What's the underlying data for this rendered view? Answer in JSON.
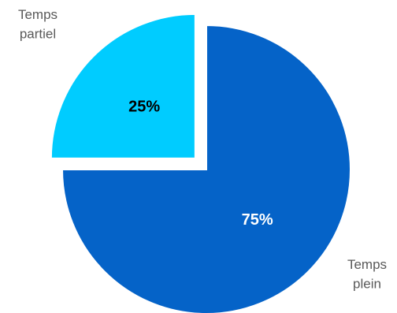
{
  "chart_data": {
    "type": "pie",
    "title": "",
    "slices": [
      {
        "label_lines": [
          "Temps",
          "plein"
        ],
        "value": 75,
        "value_label": "75%",
        "color": "#0563C8",
        "label_color": "#FFFFFF",
        "exploded": false
      },
      {
        "label_lines": [
          "Temps",
          "partiel"
        ],
        "value": 25,
        "value_label": "25%",
        "color": "#00CCFF",
        "label_color": "#000000",
        "exploded": true
      }
    ],
    "start_angle_deg": 0,
    "direction": "clockwise",
    "legend": "none",
    "category_label_color": "#595959"
  }
}
